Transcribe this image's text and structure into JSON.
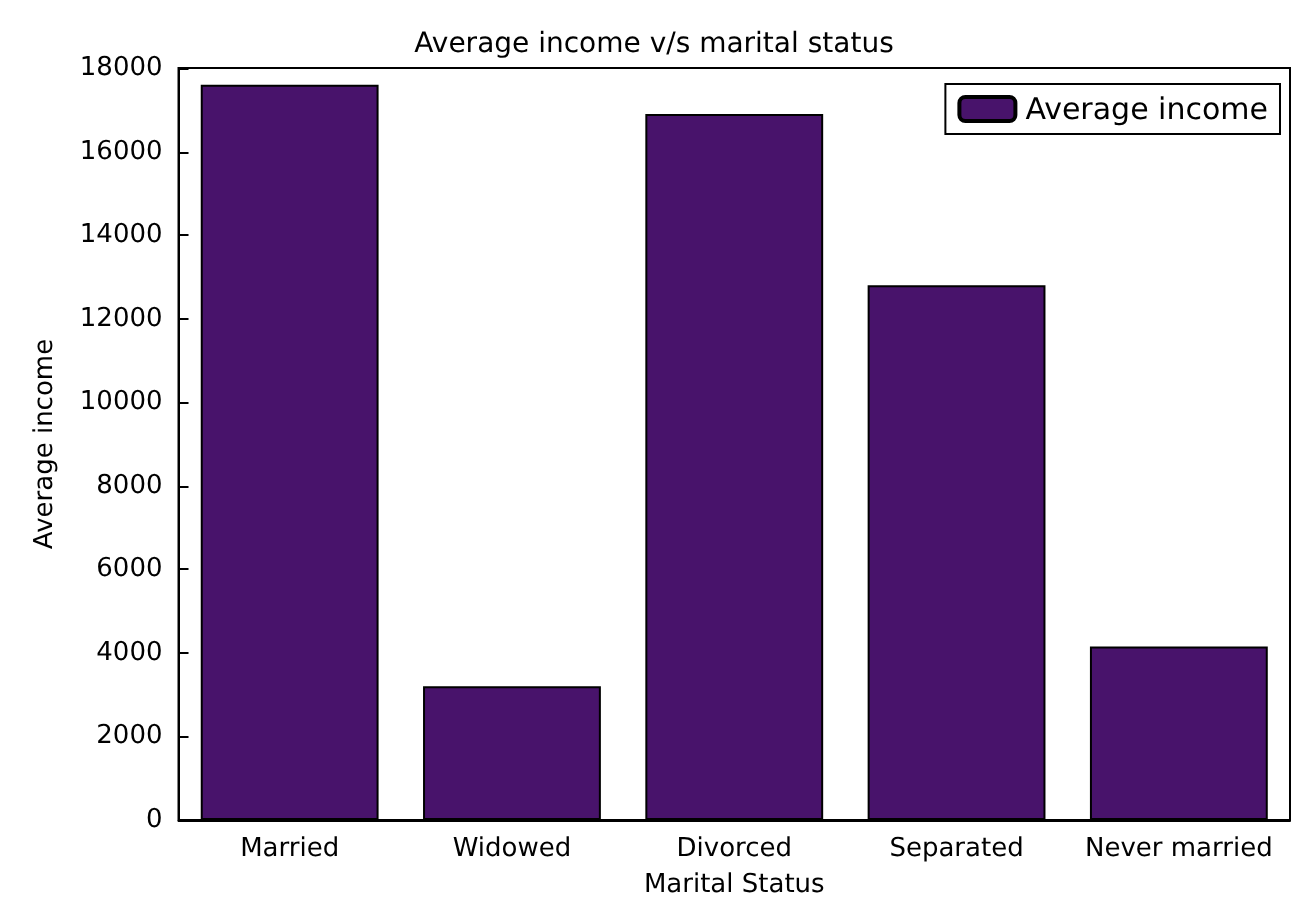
{
  "chart_data": {
    "type": "bar",
    "title": "Average income v/s marital status",
    "xlabel": "Marital Status",
    "ylabel": "Average income",
    "categories": [
      "Married",
      "Widowed",
      "Divorced",
      "Separated",
      "Never married"
    ],
    "series": [
      {
        "name": "Average income",
        "color": "#48136b",
        "values": [
          17600,
          3200,
          16900,
          12800,
          4150
        ]
      }
    ],
    "ylim": [
      0,
      18000
    ],
    "yticks": [
      0,
      2000,
      4000,
      6000,
      8000,
      10000,
      12000,
      14000,
      16000,
      18000
    ],
    "grid": false,
    "legend": "top right"
  }
}
